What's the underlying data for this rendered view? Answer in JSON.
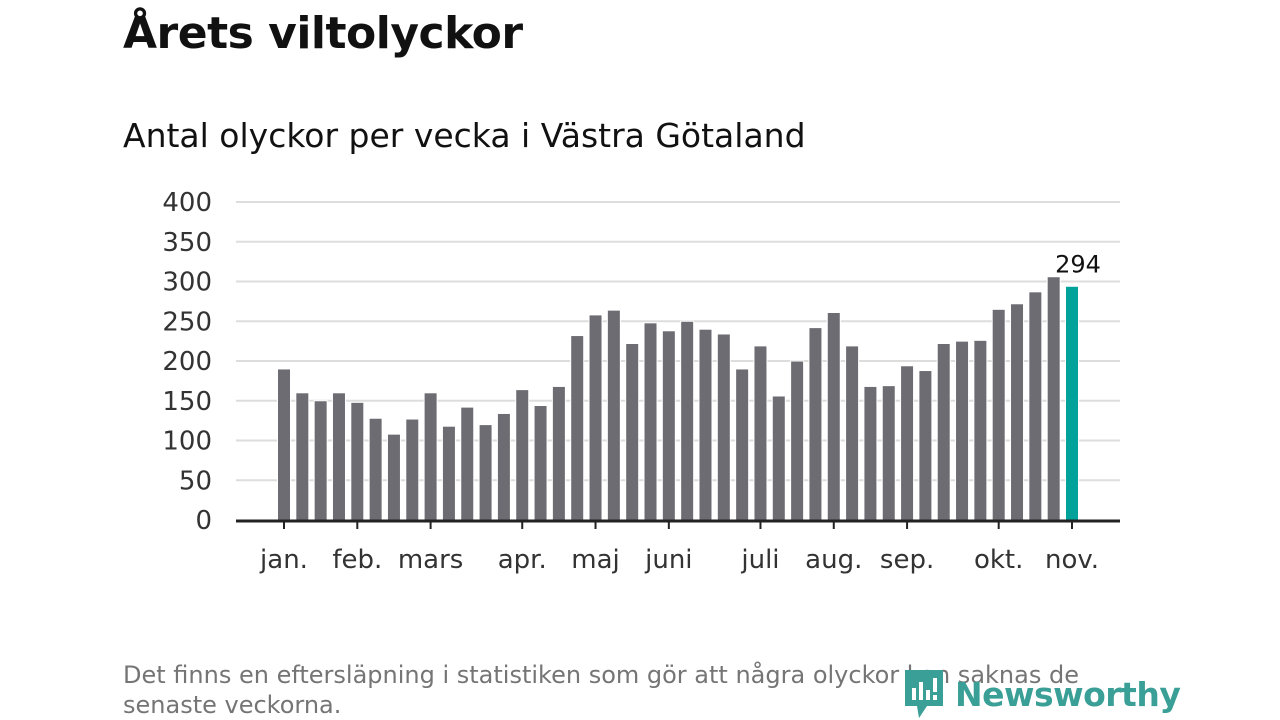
{
  "header": {
    "title": "Årets viltolyckor",
    "subtitle": "Antal olyckor per vecka i Västra Götaland"
  },
  "chart_data": {
    "type": "bar",
    "title": "Antal olyckor per vecka i Västra Götaland",
    "xlabel": "",
    "ylabel": "",
    "ylim": [
      0,
      400
    ],
    "yticks": [
      0,
      50,
      100,
      150,
      200,
      250,
      300,
      350,
      400
    ],
    "grid": true,
    "values": [
      190,
      160,
      150,
      160,
      148,
      128,
      108,
      127,
      160,
      118,
      142,
      120,
      134,
      164,
      144,
      168,
      232,
      258,
      264,
      222,
      248,
      238,
      250,
      240,
      234,
      190,
      219,
      156,
      200,
      242,
      261,
      219,
      168,
      169,
      194,
      188,
      222,
      225,
      226,
      265,
      272,
      287,
      306,
      294
    ],
    "month_ticks": [
      {
        "label": "jan.",
        "week_index": 0
      },
      {
        "label": "feb.",
        "week_index": 4
      },
      {
        "label": "mars",
        "week_index": 8
      },
      {
        "label": "apr.",
        "week_index": 13
      },
      {
        "label": "maj",
        "week_index": 17
      },
      {
        "label": "juni",
        "week_index": 21
      },
      {
        "label": "juli",
        "week_index": 26
      },
      {
        "label": "aug.",
        "week_index": 30
      },
      {
        "label": "sep.",
        "week_index": 34
      },
      {
        "label": "okt.",
        "week_index": 39
      },
      {
        "label": "nov.",
        "week_index": 43
      }
    ],
    "highlight": {
      "week_index": 43,
      "label": "294"
    },
    "colors": {
      "bar": "#6d6c72",
      "highlight": "#00a29a",
      "grid": "#dddddd",
      "axis": "#222222"
    }
  },
  "footer": {
    "note": "Det finns en eftersläpning i statistiken som gör att några olyckor kan saknas de senaste veckorna.",
    "logo": "Newsworthy"
  }
}
